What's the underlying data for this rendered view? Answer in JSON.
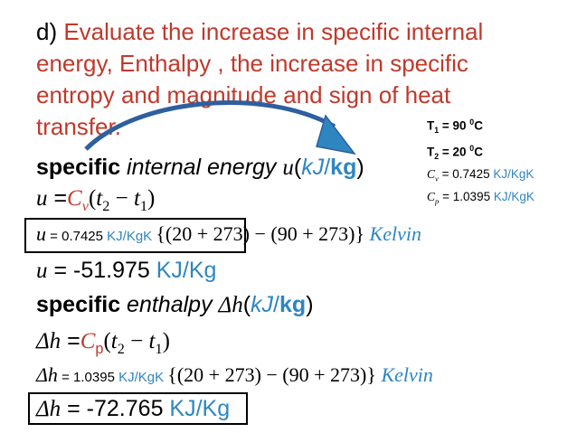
{
  "heading": {
    "prefix": "d) ",
    "lines": [
      "Evaluate the increase in specific internal",
      "energy, Enthalpy , the increase in specific",
      "entropy and magnitude and sign of heat",
      "transfer."
    ]
  },
  "given": {
    "t1": {
      "label": "T",
      "sub": "1",
      "eq": " = 90 ",
      "sup": "0",
      "unit": "C"
    },
    "t2": {
      "label": "T",
      "sub": "2",
      "eq": " = 20 ",
      "sup": "0",
      "unit": "C"
    },
    "cv": {
      "label": "C",
      "sub": "v",
      "eq": " = 0.7425 ",
      "unit": "KJ/KgK"
    },
    "cp": {
      "label": "C",
      "sub": "p",
      "eq": " = 1.0395 ",
      "unit": "KJ/KgK"
    }
  },
  "internal": {
    "title_bold": "specific",
    "title_rest": " internal energy ",
    "title_var": "u",
    "open": "(",
    "unit_kj": "kJ",
    "slash": "/",
    "unit_kg": "kg",
    "close": ")",
    "formula": {
      "lhs": "u",
      "eq": " =",
      "c": "C",
      "csub": "v",
      "rest_open": "(",
      "t2": "t",
      "t2sub": "2",
      "minus": " − ",
      "t1": "t",
      "t1sub": "1",
      "rest_close": ")"
    },
    "sub_line": {
      "lhs": "u",
      "eq": " = ",
      "value": "0.7425",
      "unit": " KJ/KgK ",
      "expr": "{(20 + 273) − (90 + 273)} ",
      "kelvin": "Kelvin"
    },
    "result": {
      "lhs": "u",
      "eq": " = -51.975 ",
      "unit": "KJ/Kg"
    }
  },
  "enthalpy": {
    "title_bold": "specific",
    "title_rest": " enthalpy ",
    "title_var": "Δh",
    "open": "(",
    "unit_kj": "kJ",
    "slash": "/",
    "unit_kg": "kg",
    "close": ")",
    "formula": {
      "lhs": "Δh",
      "eq": " =",
      "c": "C",
      "csub": "p",
      "rest_open": "(",
      "t2": "t",
      "t2sub": "2",
      "minus": " − ",
      "t1": "t",
      "t1sub": "1",
      "rest_close": ")"
    },
    "sub_line": {
      "lhs": "Δh",
      "eq": " = ",
      "value": "1.0395",
      "unit": " KJ/KgK ",
      "expr": "{(20 + 273) − (90 + 273)} ",
      "kelvin": "Kelvin"
    },
    "result": {
      "lhs": "Δh",
      "eq": " = -72.765 ",
      "unit": "KJ/Kg"
    }
  },
  "colors": {
    "red": "#c0392b",
    "blue": "#2e86c1",
    "arrow": "#2e5f9e"
  }
}
